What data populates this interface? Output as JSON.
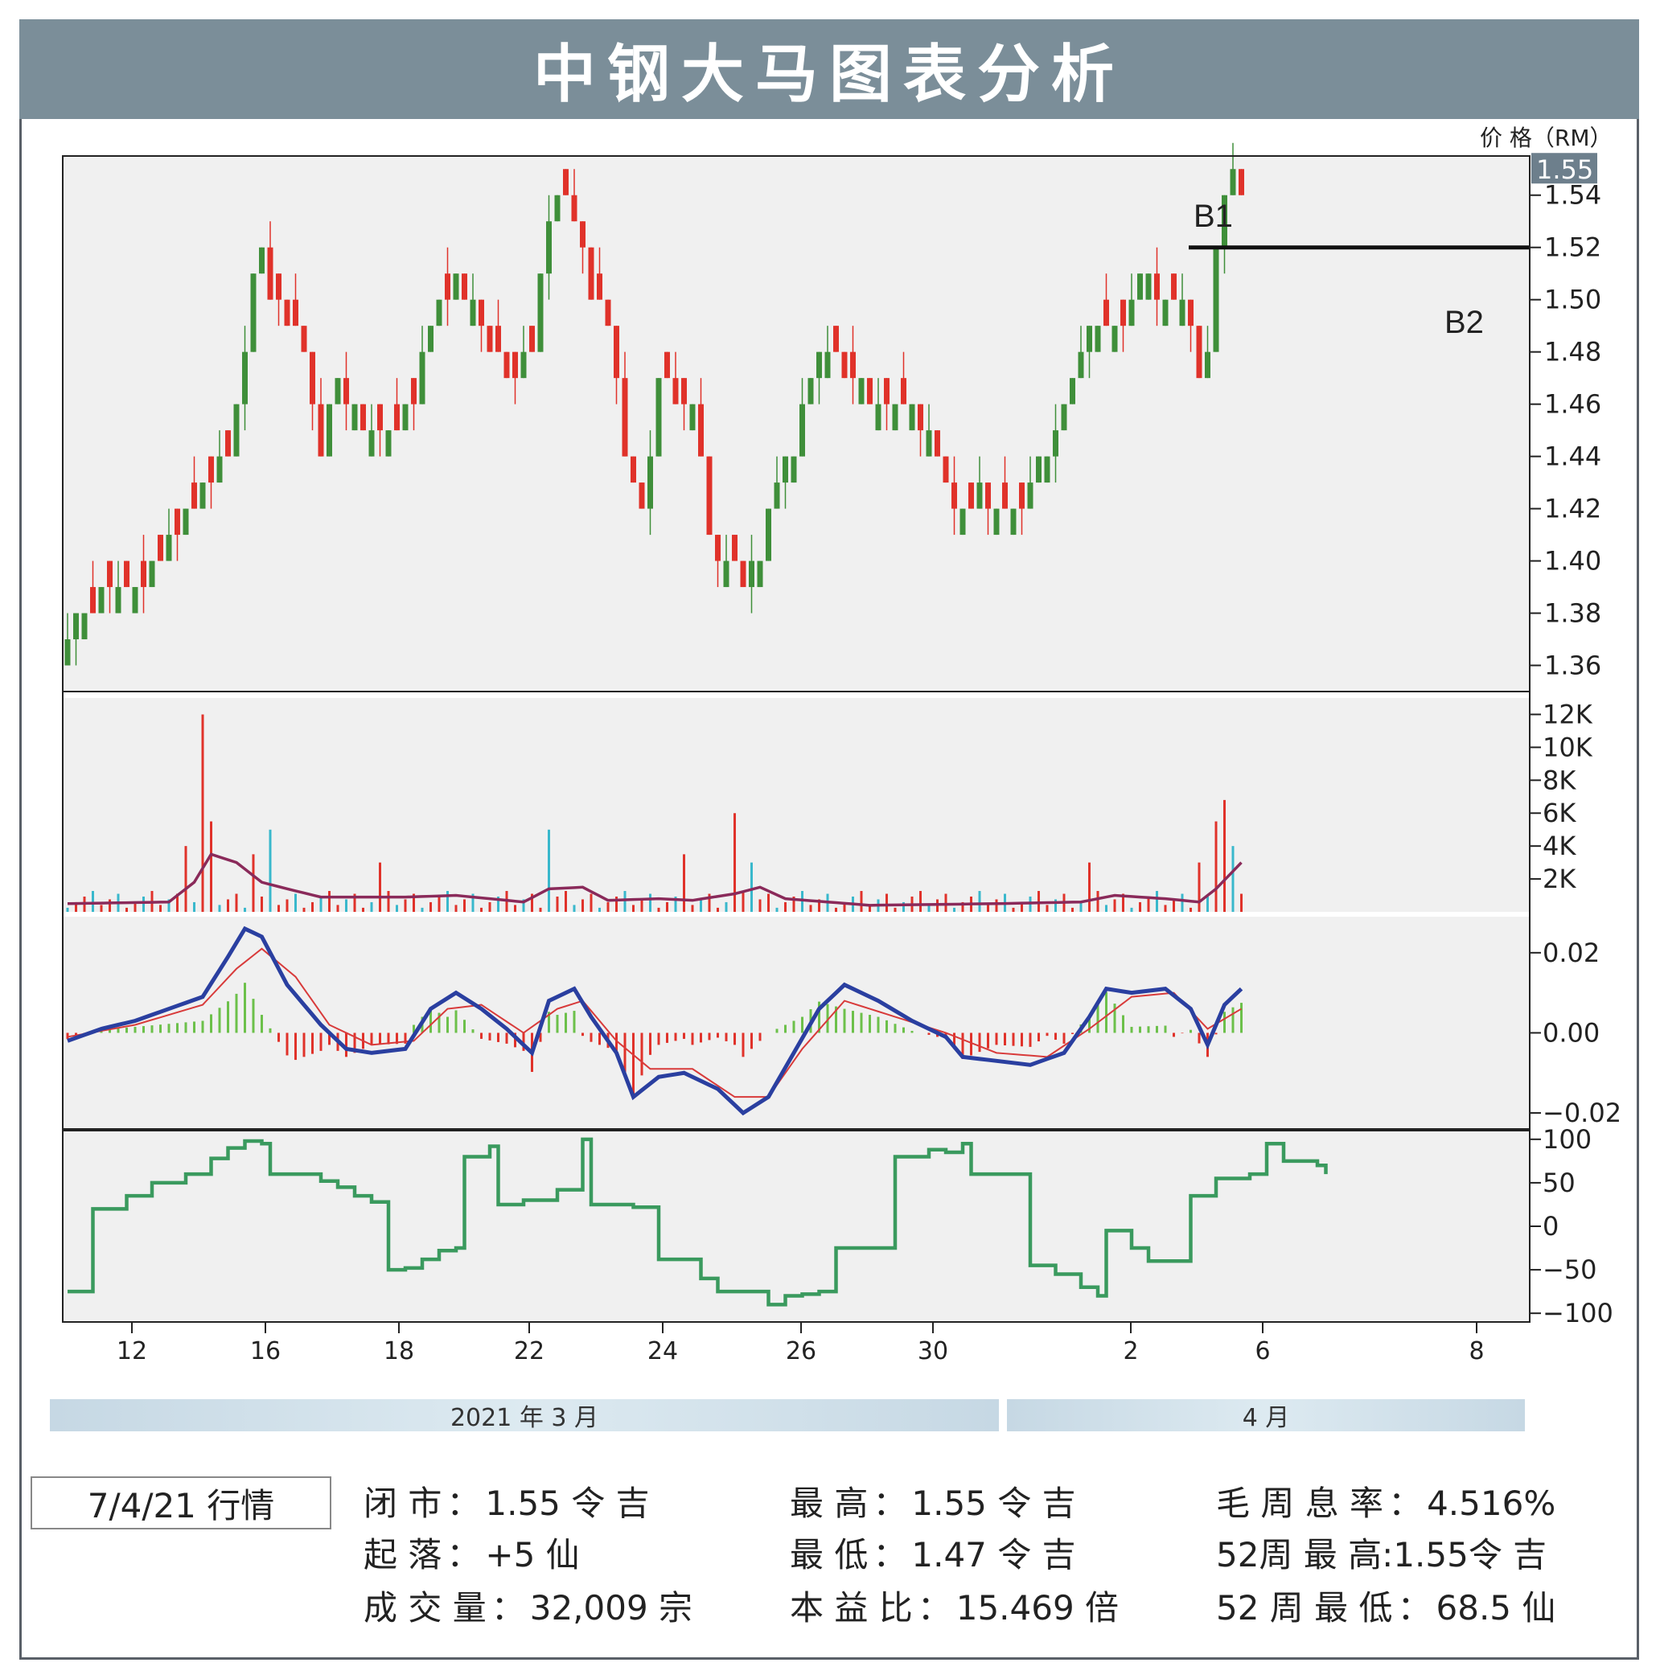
{
  "header": {
    "title": "中钢大马图表分析",
    "price_unit": "价 格（RM）"
  },
  "chart_data": [
    {
      "type": "candlestick",
      "panel": "price",
      "ylim": [
        1.35,
        1.555
      ],
      "y_ticks": [
        "1.36",
        "1.38",
        "1.40",
        "1.42",
        "1.44",
        "1.46",
        "1.48",
        "1.50",
        "1.52",
        "1.54"
      ],
      "last_price_label": "1.55",
      "annotations": [
        "B1",
        "B2"
      ],
      "resistance_level": 1.52,
      "x_ticks": [
        "12",
        "16",
        "18",
        "22",
        "24",
        "26",
        "30",
        "2",
        "6",
        "8"
      ],
      "close_path": [
        {
          "t": 0,
          "c": 1.37
        },
        {
          "t": 2,
          "c": 1.38
        },
        {
          "t": 4,
          "c": 1.39
        },
        {
          "t": 8,
          "c": 1.39
        },
        {
          "t": 11,
          "c": 1.4
        },
        {
          "t": 14,
          "c": 1.42
        },
        {
          "t": 17,
          "c": 1.43
        },
        {
          "t": 19,
          "c": 1.44
        },
        {
          "t": 21,
          "c": 1.48
        },
        {
          "t": 22,
          "c": 1.51
        },
        {
          "t": 23,
          "c": 1.52
        },
        {
          "t": 24,
          "c": 1.5
        },
        {
          "t": 26,
          "c": 1.49
        },
        {
          "t": 28,
          "c": 1.48
        },
        {
          "t": 30,
          "c": 1.44
        },
        {
          "t": 32,
          "c": 1.47
        },
        {
          "t": 35,
          "c": 1.45
        },
        {
          "t": 38,
          "c": 1.45
        },
        {
          "t": 41,
          "c": 1.46
        },
        {
          "t": 43,
          "c": 1.49
        },
        {
          "t": 46,
          "c": 1.51
        },
        {
          "t": 49,
          "c": 1.49
        },
        {
          "t": 52,
          "c": 1.47
        },
        {
          "t": 55,
          "c": 1.48
        },
        {
          "t": 57,
          "c": 1.53
        },
        {
          "t": 58,
          "c": 1.54
        },
        {
          "t": 60,
          "c": 1.53
        },
        {
          "t": 62,
          "c": 1.5
        },
        {
          "t": 64,
          "c": 1.49
        },
        {
          "t": 66,
          "c": 1.44
        },
        {
          "t": 68,
          "c": 1.42
        },
        {
          "t": 70,
          "c": 1.47
        },
        {
          "t": 72,
          "c": 1.46
        },
        {
          "t": 74,
          "c": 1.46
        },
        {
          "t": 76,
          "c": 1.41
        },
        {
          "t": 78,
          "c": 1.4
        },
        {
          "t": 80,
          "c": 1.39
        },
        {
          "t": 82,
          "c": 1.4
        },
        {
          "t": 84,
          "c": 1.43
        },
        {
          "t": 86,
          "c": 1.44
        },
        {
          "t": 88,
          "c": 1.47
        },
        {
          "t": 90,
          "c": 1.48
        },
        {
          "t": 93,
          "c": 1.47
        },
        {
          "t": 96,
          "c": 1.46
        },
        {
          "t": 99,
          "c": 1.46
        },
        {
          "t": 102,
          "c": 1.45
        },
        {
          "t": 104,
          "c": 1.43
        },
        {
          "t": 106,
          "c": 1.42
        },
        {
          "t": 108,
          "c": 1.43
        },
        {
          "t": 110,
          "c": 1.42
        },
        {
          "t": 113,
          "c": 1.42
        },
        {
          "t": 115,
          "c": 1.44
        },
        {
          "t": 117,
          "c": 1.45
        },
        {
          "t": 119,
          "c": 1.47
        },
        {
          "t": 121,
          "c": 1.49
        },
        {
          "t": 123,
          "c": 1.49
        },
        {
          "t": 125,
          "c": 1.49
        },
        {
          "t": 127,
          "c": 1.51
        },
        {
          "t": 129,
          "c": 1.5
        },
        {
          "t": 131,
          "c": 1.5
        },
        {
          "t": 133,
          "c": 1.49
        },
        {
          "t": 134,
          "c": 1.47
        },
        {
          "t": 135,
          "c": 1.48
        },
        {
          "t": 136,
          "c": 1.52
        },
        {
          "t": 137,
          "c": 1.54
        },
        {
          "t": 138,
          "c": 1.55
        },
        {
          "t": 139,
          "c": 1.54
        }
      ]
    },
    {
      "type": "bar",
      "panel": "volume",
      "ylim": [
        0,
        13000
      ],
      "y_ticks": [
        "2K",
        "4K",
        "6K",
        "8K",
        "10K",
        "12K"
      ],
      "spikes": [
        {
          "t": 14,
          "v": 4000
        },
        {
          "t": 16,
          "v": 12000
        },
        {
          "t": 17,
          "v": 5500
        },
        {
          "t": 22,
          "v": 3500
        },
        {
          "t": 24,
          "v": 5000
        },
        {
          "t": 37,
          "v": 3000
        },
        {
          "t": 57,
          "v": 5000
        },
        {
          "t": 73,
          "v": 3500
        },
        {
          "t": 79,
          "v": 6000
        },
        {
          "t": 81,
          "v": 3000
        },
        {
          "t": 121,
          "v": 3000
        },
        {
          "t": 134,
          "v": 3000
        },
        {
          "t": 136,
          "v": 5500
        },
        {
          "t": 137,
          "v": 6800
        },
        {
          "t": 138,
          "v": 4000
        }
      ],
      "ma": [
        {
          "t": 0,
          "v": 500
        },
        {
          "t": 12,
          "v": 600
        },
        {
          "t": 15,
          "v": 1800
        },
        {
          "t": 17,
          "v": 3500
        },
        {
          "t": 20,
          "v": 3000
        },
        {
          "t": 23,
          "v": 1800
        },
        {
          "t": 26,
          "v": 1400
        },
        {
          "t": 30,
          "v": 900
        },
        {
          "t": 40,
          "v": 900
        },
        {
          "t": 46,
          "v": 1000
        },
        {
          "t": 50,
          "v": 800
        },
        {
          "t": 54,
          "v": 600
        },
        {
          "t": 57,
          "v": 1400
        },
        {
          "t": 61,
          "v": 1500
        },
        {
          "t": 64,
          "v": 700
        },
        {
          "t": 70,
          "v": 800
        },
        {
          "t": 74,
          "v": 700
        },
        {
          "t": 79,
          "v": 1100
        },
        {
          "t": 82,
          "v": 1500
        },
        {
          "t": 85,
          "v": 800
        },
        {
          "t": 95,
          "v": 400
        },
        {
          "t": 110,
          "v": 500
        },
        {
          "t": 120,
          "v": 600
        },
        {
          "t": 124,
          "v": 1000
        },
        {
          "t": 130,
          "v": 800
        },
        {
          "t": 134,
          "v": 600
        },
        {
          "t": 136,
          "v": 1400
        },
        {
          "t": 139,
          "v": 3000
        }
      ]
    },
    {
      "type": "line",
      "panel": "macd",
      "ylim": [
        -0.024,
        0.029
      ],
      "y_ticks": [
        "0.02",
        "0.00",
        "−0.02"
      ],
      "series": [
        {
          "values": [
            {
              "t": 0,
              "v": -0.002
            },
            {
              "t": 4,
              "v": 0.001
            },
            {
              "t": 8,
              "v": 0.003
            },
            {
              "t": 12,
              "v": 0.006
            },
            {
              "t": 16,
              "v": 0.009
            },
            {
              "t": 19,
              "v": 0.019
            },
            {
              "t": 21,
              "v": 0.026
            },
            {
              "t": 23,
              "v": 0.024
            },
            {
              "t": 26,
              "v": 0.012
            },
            {
              "t": 30,
              "v": 0.002
            },
            {
              "t": 33,
              "v": -0.004
            },
            {
              "t": 36,
              "v": -0.005
            },
            {
              "t": 40,
              "v": -0.004
            },
            {
              "t": 43,
              "v": 0.006
            },
            {
              "t": 46,
              "v": 0.01
            },
            {
              "t": 49,
              "v": 0.006
            },
            {
              "t": 52,
              "v": 0.001
            },
            {
              "t": 55,
              "v": -0.005
            },
            {
              "t": 57,
              "v": 0.008
            },
            {
              "t": 60,
              "v": 0.011
            },
            {
              "t": 62,
              "v": 0.004
            },
            {
              "t": 65,
              "v": -0.005
            },
            {
              "t": 67,
              "v": -0.016
            },
            {
              "t": 70,
              "v": -0.011
            },
            {
              "t": 73,
              "v": -0.01
            },
            {
              "t": 77,
              "v": -0.014
            },
            {
              "t": 80,
              "v": -0.02
            },
            {
              "t": 83,
              "v": -0.016
            },
            {
              "t": 86,
              "v": -0.005
            },
            {
              "t": 89,
              "v": 0.006
            },
            {
              "t": 92,
              "v": 0.012
            },
            {
              "t": 96,
              "v": 0.008
            },
            {
              "t": 100,
              "v": 0.003
            },
            {
              "t": 104,
              "v": -0.001
            },
            {
              "t": 106,
              "v": -0.006
            },
            {
              "t": 110,
              "v": -0.007
            },
            {
              "t": 114,
              "v": -0.008
            },
            {
              "t": 118,
              "v": -0.005
            },
            {
              "t": 121,
              "v": 0.004
            },
            {
              "t": 123,
              "v": 0.011
            },
            {
              "t": 126,
              "v": 0.01
            },
            {
              "t": 130,
              "v": 0.011
            },
            {
              "t": 133,
              "v": 0.006
            },
            {
              "t": 135,
              "v": -0.003
            },
            {
              "t": 137,
              "v": 0.007
            },
            {
              "t": 139,
              "v": 0.011
            }
          ]
        },
        {
          "values": [
            {
              "t": 0,
              "v": -0.001
            },
            {
              "t": 8,
              "v": 0.002
            },
            {
              "t": 16,
              "v": 0.007
            },
            {
              "t": 20,
              "v": 0.016
            },
            {
              "t": 23,
              "v": 0.021
            },
            {
              "t": 27,
              "v": 0.014
            },
            {
              "t": 31,
              "v": 0.002
            },
            {
              "t": 36,
              "v": -0.003
            },
            {
              "t": 41,
              "v": -0.002
            },
            {
              "t": 45,
              "v": 0.006
            },
            {
              "t": 49,
              "v": 0.007
            },
            {
              "t": 54,
              "v": 0.0
            },
            {
              "t": 58,
              "v": 0.006
            },
            {
              "t": 61,
              "v": 0.008
            },
            {
              "t": 65,
              "v": -0.002
            },
            {
              "t": 69,
              "v": -0.009
            },
            {
              "t": 74,
              "v": -0.009
            },
            {
              "t": 79,
              "v": -0.016
            },
            {
              "t": 83,
              "v": -0.016
            },
            {
              "t": 87,
              "v": -0.004
            },
            {
              "t": 92,
              "v": 0.008
            },
            {
              "t": 98,
              "v": 0.004
            },
            {
              "t": 104,
              "v": 0.0
            },
            {
              "t": 110,
              "v": -0.005
            },
            {
              "t": 116,
              "v": -0.006
            },
            {
              "t": 121,
              "v": 0.001
            },
            {
              "t": 126,
              "v": 0.009
            },
            {
              "t": 131,
              "v": 0.01
            },
            {
              "t": 135,
              "v": 0.001
            },
            {
              "t": 139,
              "v": 0.006
            }
          ]
        }
      ]
    },
    {
      "type": "line",
      "panel": "oscillator",
      "ylim": [
        -110,
        110
      ],
      "y_ticks": [
        "100",
        "50",
        "0",
        "−50",
        "−100"
      ],
      "series": [
        {
          "values": [
            {
              "t": 0,
              "v": -75
            },
            {
              "t": 2,
              "v": -75
            },
            {
              "t": 3,
              "v": 20
            },
            {
              "t": 7,
              "v": 35
            },
            {
              "t": 10,
              "v": 50
            },
            {
              "t": 13,
              "v": 50
            },
            {
              "t": 14,
              "v": 60
            },
            {
              "t": 17,
              "v": 78
            },
            {
              "t": 19,
              "v": 90
            },
            {
              "t": 21,
              "v": 98
            },
            {
              "t": 23,
              "v": 95
            },
            {
              "t": 24,
              "v": 60
            },
            {
              "t": 28,
              "v": 60
            },
            {
              "t": 30,
              "v": 52
            },
            {
              "t": 32,
              "v": 45
            },
            {
              "t": 34,
              "v": 35
            },
            {
              "t": 36,
              "v": 28
            },
            {
              "t": 38,
              "v": -50
            },
            {
              "t": 40,
              "v": -48
            },
            {
              "t": 42,
              "v": -38
            },
            {
              "t": 44,
              "v": -28
            },
            {
              "t": 46,
              "v": -25
            },
            {
              "t": 47,
              "v": 80
            },
            {
              "t": 50,
              "v": 92
            },
            {
              "t": 51,
              "v": 25
            },
            {
              "t": 54,
              "v": 30
            },
            {
              "t": 58,
              "v": 42
            },
            {
              "t": 60,
              "v": 42
            },
            {
              "t": 61,
              "v": 100
            },
            {
              "t": 62,
              "v": 25
            },
            {
              "t": 67,
              "v": 22
            },
            {
              "t": 70,
              "v": -38
            },
            {
              "t": 74,
              "v": -38
            },
            {
              "t": 75,
              "v": -60
            },
            {
              "t": 77,
              "v": -75
            },
            {
              "t": 81,
              "v": -75
            },
            {
              "t": 83,
              "v": -90
            },
            {
              "t": 85,
              "v": -80
            },
            {
              "t": 87,
              "v": -78
            },
            {
              "t": 89,
              "v": -75
            },
            {
              "t": 91,
              "v": -25
            },
            {
              "t": 97,
              "v": -25
            },
            {
              "t": 98,
              "v": 80
            },
            {
              "t": 102,
              "v": 88
            },
            {
              "t": 104,
              "v": 85
            },
            {
              "t": 106,
              "v": 95
            },
            {
              "t": 107,
              "v": 60
            },
            {
              "t": 113,
              "v": 60
            },
            {
              "t": 114,
              "v": -45
            },
            {
              "t": 117,
              "v": -55
            },
            {
              "t": 120,
              "v": -70
            },
            {
              "t": 122,
              "v": -80
            },
            {
              "t": 123,
              "v": -5
            },
            {
              "t": 126,
              "v": -25
            },
            {
              "t": 128,
              "v": -40
            },
            {
              "t": 132,
              "v": -40
            },
            {
              "t": 133,
              "v": 35
            },
            {
              "t": 136,
              "v": 55
            },
            {
              "t": 140,
              "v": 60
            },
            {
              "t": 142,
              "v": 95
            },
            {
              "t": 144,
              "v": 75
            },
            {
              "t": 148,
              "v": 70
            },
            {
              "t": 149,
              "v": 60
            }
          ]
        }
      ]
    }
  ],
  "months": {
    "march": "2021 年 3 月",
    "april": "4 月"
  },
  "stats": {
    "date": "7/4/21 行情",
    "close_label": "闭 市",
    "close_value": "1.55 令 吉",
    "change_label": "起 落",
    "change_value": "+5 仙",
    "volume_label": "成 交 量",
    "volume_value": "32,009 宗",
    "high_label": "最 高",
    "high_value": "1.55 令 吉",
    "low_label": "最 低",
    "low_value": "1.47 令 吉",
    "pe_label": "本 益 比",
    "pe_value": "15.469 倍",
    "yield_label": "毛 周 息 率",
    "yield_value": "4.516%",
    "wk52_high_label": "52周 最 高",
    "wk52_high_value": "1.55令 吉",
    "wk52_low_label": "52 周 最 低",
    "wk52_low_value": "68.5 仙"
  },
  "colors": {
    "up": "#3f8f3a",
    "down": "#e0322a",
    "vol_up": "#39b8cc",
    "vol_ma": "#8a2a5a",
    "macd": "#2a3fa0",
    "signal": "#d83a3a",
    "osc": "#3a9a5e",
    "panel_bg": "#f0f0f0",
    "title_bg": "#7b8e99"
  }
}
